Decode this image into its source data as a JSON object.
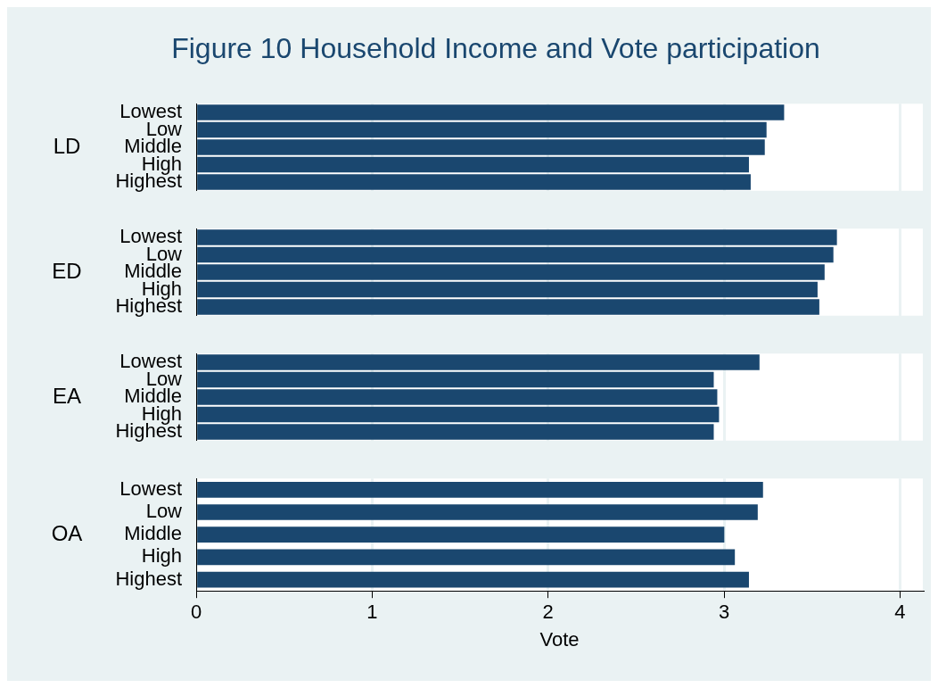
{
  "chart_data": [
    {
      "type": "bar",
      "orientation": "horizontal",
      "title": "Figure 10 Household Income and Vote participation",
      "ylabel": "LD",
      "categories": [
        "Lowest",
        "Low",
        "Middle",
        "High",
        "Highest"
      ],
      "values": [
        3.34,
        3.24,
        3.23,
        3.14,
        3.15
      ],
      "color": "#1a476f",
      "xlim": [
        0,
        4.13
      ],
      "xticks": [
        0,
        1,
        2,
        3,
        4
      ],
      "grid": "x",
      "tick_labels": "y"
    },
    {
      "type": "bar",
      "orientation": "horizontal",
      "ylabel": "ED",
      "categories": [
        "Lowest",
        "Low",
        "Middle",
        "High",
        "Highest"
      ],
      "values": [
        3.64,
        3.62,
        3.57,
        3.53,
        3.54
      ],
      "color": "#1a476f",
      "xlim": [
        0,
        4.13
      ],
      "xticks": [
        0,
        1,
        2,
        3,
        4
      ],
      "grid": "x",
      "tick_labels": "y"
    },
    {
      "type": "bar",
      "orientation": "horizontal",
      "ylabel": "EA",
      "categories": [
        "Lowest",
        "Low",
        "Middle",
        "High",
        "Highest"
      ],
      "values": [
        3.2,
        2.94,
        2.96,
        2.97,
        2.94
      ],
      "color": "#1a476f",
      "xlim": [
        0,
        4.13
      ],
      "xticks": [
        0,
        1,
        2,
        3,
        4
      ],
      "grid": "x",
      "tick_labels": "y"
    },
    {
      "type": "bar",
      "orientation": "horizontal",
      "ylabel": "OA",
      "xlabel": "Vote",
      "categories": [
        "Lowest",
        "Low",
        "Middle",
        "High",
        "Highest"
      ],
      "values": [
        3.22,
        3.19,
        3.0,
        3.06,
        3.14
      ],
      "color": "#1a476f",
      "xlim": [
        0,
        4.13
      ],
      "xticks": [
        0,
        1,
        2,
        3,
        4
      ],
      "grid": "x"
    }
  ]
}
